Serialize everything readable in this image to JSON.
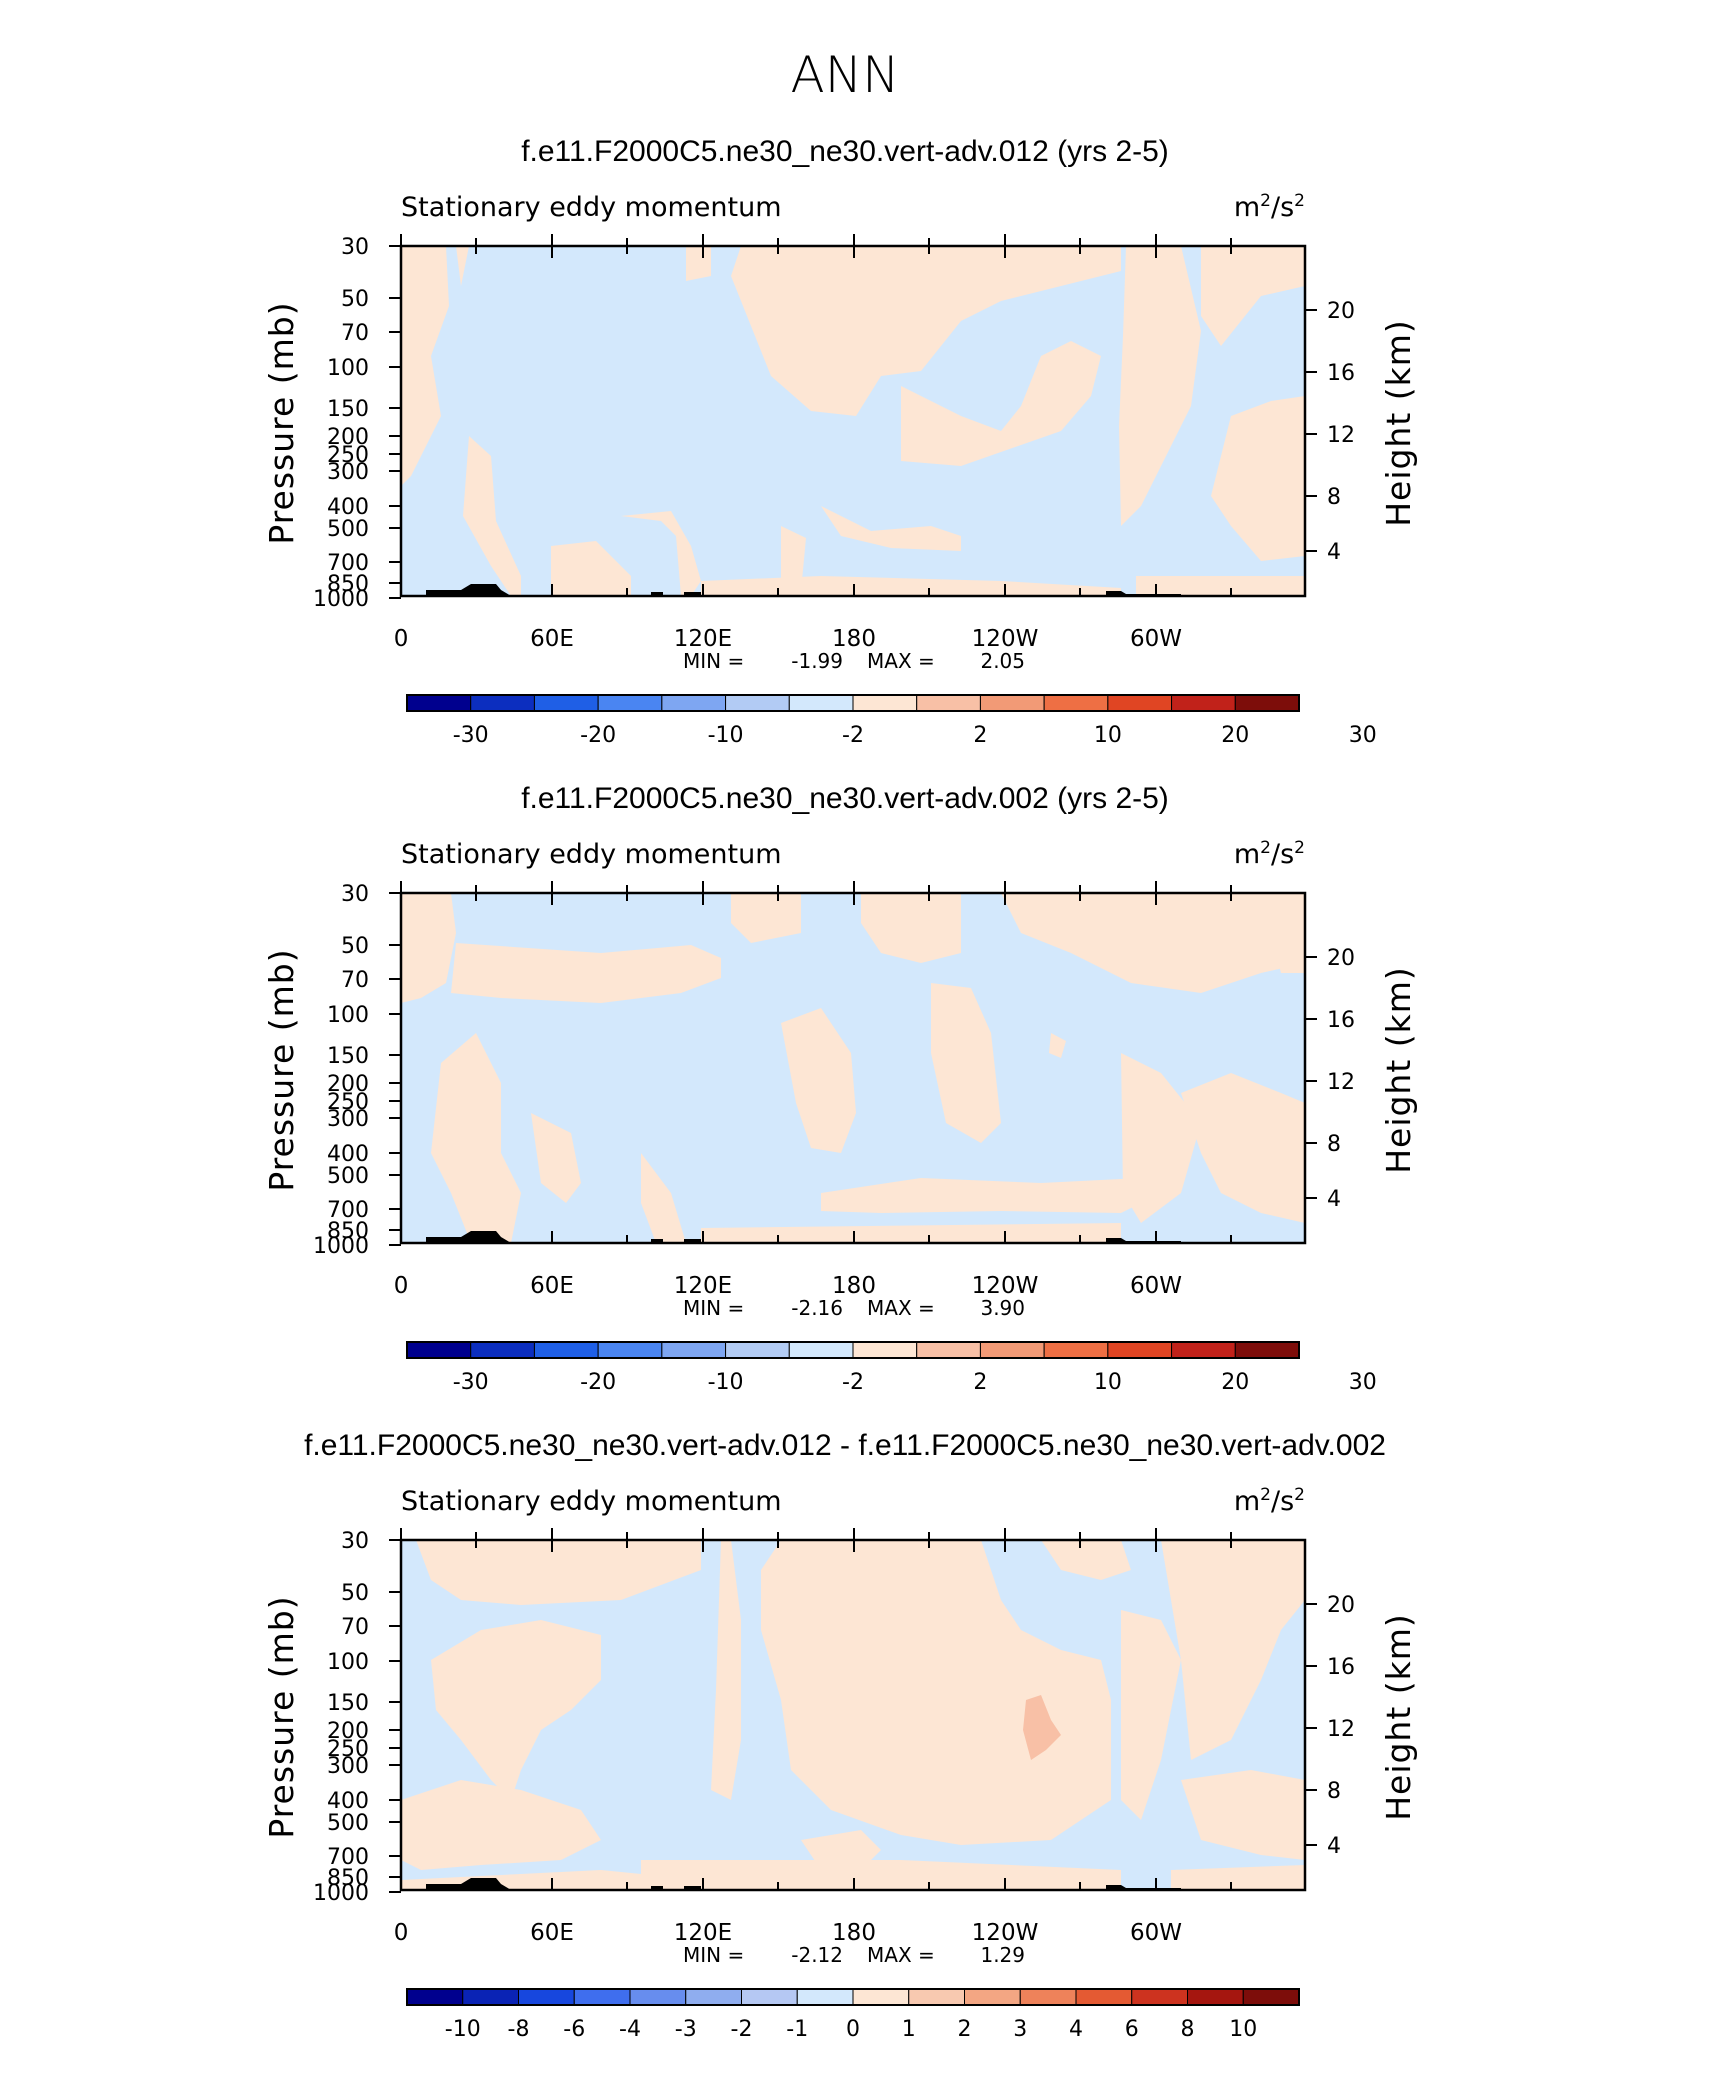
{
  "season": "ANN",
  "colors": {
    "neg_light": "#d3e8fc",
    "pos_light": "#fde6d4",
    "pos_medium": "#f8c0a6",
    "terrain": "#000000"
  },
  "chart_data": [
    {
      "type": "heatmap",
      "title": "f.e11.F2000C5.ne30_ne30.vert-adv.012 (yrs 2-5)",
      "subtitle_left": "Stationary eddy momentum",
      "units": "m²/s²",
      "units_base": "m",
      "units_exp1": "2",
      "units_mid": "/s",
      "units_exp2": "2",
      "ylabel": "Pressure (mb)",
      "ylabel_right": "Height (km)",
      "y_ticks": [
        "30",
        "50",
        "70",
        "100",
        "150",
        "200",
        "250",
        "300",
        "400",
        "500",
        "700",
        "850",
        "1000"
      ],
      "y_right_ticks": [
        "20",
        "16",
        "12",
        "8",
        "4"
      ],
      "x_ticks": [
        "0",
        "60E",
        "120E",
        "180",
        "120W",
        "60W"
      ],
      "min_label": "MIN =",
      "min_value": "-1.99",
      "max_label": "MAX =",
      "max_value": "2.05",
      "colorbar_labels": [
        "-30",
        "-20",
        "-10",
        "-2",
        "2",
        "10",
        "20",
        "30"
      ]
    },
    {
      "type": "heatmap",
      "title": "f.e11.F2000C5.ne30_ne30.vert-adv.002 (yrs 2-5)",
      "subtitle_left": "Stationary eddy momentum",
      "units": "m²/s²",
      "units_base": "m",
      "units_exp1": "2",
      "units_mid": "/s",
      "units_exp2": "2",
      "ylabel": "Pressure (mb)",
      "ylabel_right": "Height (km)",
      "y_ticks": [
        "30",
        "50",
        "70",
        "100",
        "150",
        "200",
        "250",
        "300",
        "400",
        "500",
        "700",
        "850",
        "1000"
      ],
      "y_right_ticks": [
        "20",
        "16",
        "12",
        "8",
        "4"
      ],
      "x_ticks": [
        "0",
        "60E",
        "120E",
        "180",
        "120W",
        "60W"
      ],
      "min_label": "MIN =",
      "min_value": "-2.16",
      "max_label": "MAX =",
      "max_value": "3.90",
      "colorbar_labels": [
        "-30",
        "-20",
        "-10",
        "-2",
        "2",
        "10",
        "20",
        "30"
      ]
    },
    {
      "type": "heatmap",
      "title": "f.e11.F2000C5.ne30_ne30.vert-adv.012 - f.e11.F2000C5.ne30_ne30.vert-adv.002",
      "subtitle_left": "Stationary eddy momentum",
      "units": "m²/s²",
      "units_base": "m",
      "units_exp1": "2",
      "units_mid": "/s",
      "units_exp2": "2",
      "ylabel": "Pressure (mb)",
      "ylabel_right": "Height (km)",
      "y_ticks": [
        "30",
        "50",
        "70",
        "100",
        "150",
        "200",
        "250",
        "300",
        "400",
        "500",
        "700",
        "850",
        "1000"
      ],
      "y_right_ticks": [
        "20",
        "16",
        "12",
        "8",
        "4"
      ],
      "x_ticks": [
        "0",
        "60E",
        "120E",
        "180",
        "120W",
        "60W"
      ],
      "min_label": "MIN =",
      "min_value": "-2.12",
      "max_label": "MAX =",
      "max_value": "1.29",
      "colorbar_labels": [
        "-10",
        "-8",
        "-6",
        "-4",
        "-3",
        "-2",
        "-1",
        "0",
        "1",
        "2",
        "3",
        "4",
        "6",
        "8",
        "10"
      ]
    }
  ]
}
